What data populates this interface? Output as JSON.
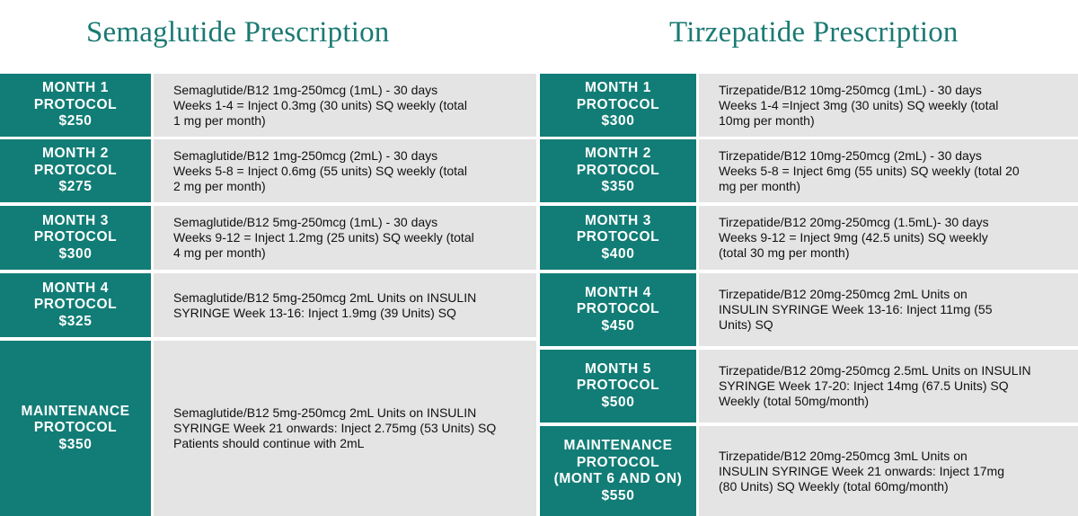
{
  "left": {
    "title": "Semaglutide Prescription",
    "rows": [
      {
        "label": "MONTH 1\nPROTOCOL\n$250",
        "text": "Semaglutide/B12 1mg-250mcg (1mL) - 30 days\nWeeks 1-4 = Inject 0.3mg (30 units) SQ weekly (total\n1 mg per month)"
      },
      {
        "label": "MONTH 2\nPROTOCOL\n$275",
        "text": "Semaglutide/B12 1mg-250mcg (2mL) - 30 days\nWeeks 5-8 = Inject 0.6mg (55 units) SQ weekly (total\n2 mg per month)"
      },
      {
        "label": "MONTH 3\nPROTOCOL\n$300",
        "text": "Semaglutide/B12 5mg-250mcg (1mL) - 30 days\nWeeks 9-12 = Inject 1.2mg (25 units) SQ weekly (total\n4 mg per month)"
      },
      {
        "label": "MONTH 4\nPROTOCOL\n$325",
        "text": "Semaglutide/B12 5mg-250mcg 2mL Units on INSULIN\nSYRINGE Week 13-16: Inject 1.9mg (39 Units) SQ"
      },
      {
        "label": "MAINTENANCE\nPROTOCOL\n$350",
        "text": "Semaglutide/B12 5mg-250mcg 2mL Units on INSULIN\nSYRINGE Week 21 onwards: Inject 2.75mg (53 Units) SQ\nPatients should continue with 2mL"
      }
    ]
  },
  "right": {
    "title": "Tirzepatide Prescription",
    "rows": [
      {
        "label": "MONTH 1\nPROTOCOL\n$300",
        "text": "Tirzepatide/B12 10mg-250mcg (1mL) - 30 days\nWeeks 1-4 =Inject 3mg (30 units) SQ weekly (total\n10mg per month)"
      },
      {
        "label": "MONTH 2\nPROTOCOL\n$350",
        "text": "Tirzepatide/B12 10mg-250mcg (2mL) - 30 days\nWeeks 5-8 = Inject 6mg (55 units) SQ weekly (total 20\nmg per month)"
      },
      {
        "label": "MONTH 3\nPROTOCOL\n$400",
        "text": "Tirzepatide/B12 20mg-250mcg (1.5mL)- 30 days\nWeeks 9-12 = Inject 9mg (42.5 units) SQ weekly\n(total 30 mg per month)"
      },
      {
        "label": "MONTH 4\nPROTOCOL\n$450",
        "text": "Tirzepatide/B12 20mg-250mcg 2mL Units on\nINSULIN SYRINGE Week 13-16: Inject 11mg (55\nUnits) SQ"
      },
      {
        "label": "MONTH 5\nPROTOCOL\n$500",
        "text": "Tirzepatide/B12 20mg-250mcg 2.5mL Units on INSULIN\nSYRINGE Week 17-20: Inject 14mg (67.5 Units) SQ\nWeekly (total 50mg/month)"
      },
      {
        "label": "MAINTENANCE\nPROTOCOL\n(MONT 6 AND ON)\n$550",
        "text": "Tirzepatide/B12 20mg-250mcg 3mL Units on\nINSULIN SYRINGE Week 21 onwards: Inject 17mg\n(80 Units) SQ Weekly (total 60mg/month)"
      }
    ]
  }
}
